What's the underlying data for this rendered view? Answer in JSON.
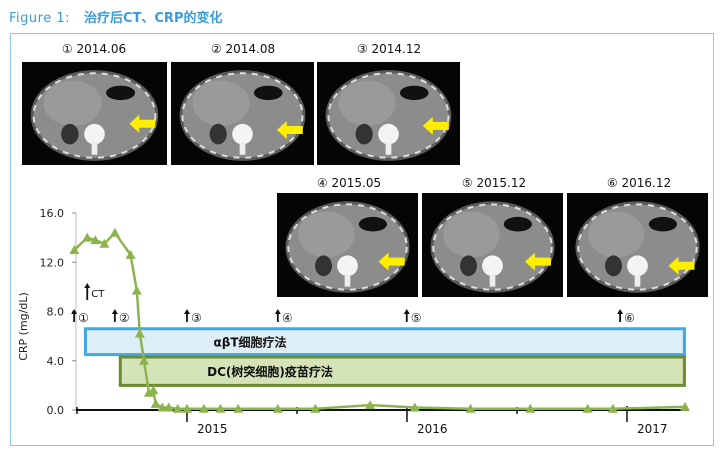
{
  "header": {
    "figure_label": "Figure  1:",
    "title": "治疗后CT、CRP的变化"
  },
  "colors": {
    "title": "#3b9bd8",
    "frame": "#8ec6ea",
    "series": "#8db34f",
    "abt_box_fill": "#ddeef7",
    "abt_box_border": "#3fa9e6",
    "dc_box_fill": "#d5e3b8",
    "dc_box_border": "#6b8a32",
    "arrow": "#ffee00"
  },
  "ct_images": [
    {
      "label": "① 2014.06",
      "icon": "ct-scan-image"
    },
    {
      "label": "② 2014.08",
      "icon": "ct-scan-image"
    },
    {
      "label": "③ 2014.12",
      "icon": "ct-scan-image"
    },
    {
      "label": "④ 2015.05",
      "icon": "ct-scan-image"
    },
    {
      "label": "⑤ 2015.12",
      "icon": "ct-scan-image"
    },
    {
      "label": "⑥ 2016.12",
      "icon": "ct-scan-image"
    }
  ],
  "chart_data": {
    "type": "line",
    "title": "",
    "xlabel": "",
    "ylabel": "CRP (mg/dL)",
    "ylim": [
      0,
      16
    ],
    "yticks": [
      "0.0",
      "4.0",
      "8.0",
      "12.0",
      "16.0"
    ],
    "xticks": [
      "2015",
      "2016",
      "2017"
    ],
    "xlim": [
      "2014-06-25",
      "2017-04-15"
    ],
    "grid": false,
    "marker": "triangle",
    "series": [
      {
        "x": [
          "2014-06-27",
          "2014-07-18",
          "2014-08-01",
          "2014-08-16",
          "2014-09-03",
          "2014-09-29",
          "2014-10-09",
          "2014-10-14",
          "2014-10-21",
          "2014-10-29",
          "2014-11-06",
          "2014-11-10",
          "2014-11-21",
          "2014-12-01",
          "2014-12-16",
          "2015-01-01",
          "2015-01-29",
          "2015-02-26",
          "2015-03-25",
          "2015-05-30",
          "2015-08-01",
          "2015-10-31",
          "2016-01-14",
          "2016-04-15",
          "2016-07-23",
          "2016-10-27",
          "2016-12-08",
          "2017-04-06"
        ],
        "y": [
          13.0,
          14.0,
          13.8,
          13.5,
          14.4,
          12.6,
          9.7,
          6.2,
          4.0,
          1.4,
          1.6,
          0.5,
          0.2,
          0.2,
          0.1,
          0.1,
          0.1,
          0.1,
          0.1,
          0.1,
          0.1,
          0.4,
          0.2,
          0.1,
          0.1,
          0.1,
          0.1,
          0.25
        ]
      }
    ],
    "annotations": [
      {
        "text": "CT",
        "date": "2014-07-18",
        "type": "arrow"
      },
      {
        "text": "①",
        "date": "2014-06-25",
        "type": "arrow"
      },
      {
        "text": "②",
        "date": "2014-09-03",
        "type": "arrow"
      },
      {
        "text": "③",
        "date": "2015-01-01",
        "type": "arrow"
      },
      {
        "text": "④",
        "date": "2015-05-30",
        "type": "arrow"
      },
      {
        "text": "⑤",
        "date": "2015-12-31",
        "type": "arrow"
      },
      {
        "text": "⑥",
        "date": "2016-12-20",
        "type": "arrow"
      }
    ],
    "treatments": [
      {
        "label": "αβT细胞疗法",
        "start": "2014-07-15",
        "end": "2017-04-05",
        "y_range": [
          4.5,
          6.6
        ],
        "style": "blue"
      },
      {
        "label": "DC(树突细胞)疫苗疗法",
        "start": "2014-09-12",
        "end": "2017-04-05",
        "y_range": [
          2.0,
          4.3
        ],
        "style": "green"
      }
    ]
  }
}
